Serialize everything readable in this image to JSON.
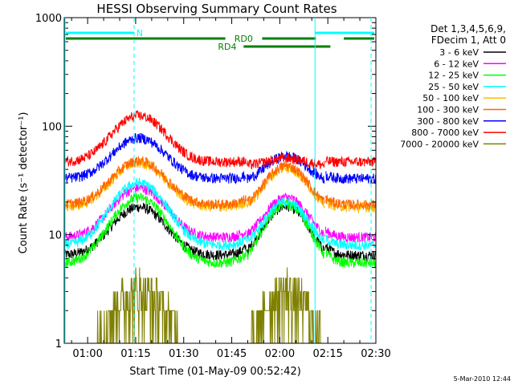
{
  "chart_data": {
    "type": "line",
    "title": "HESSI Observing Summary Count Rates",
    "xlabel": "Start Time (01-May-09 00:52:42)",
    "ylabel": "Count Rate (s⁻¹ detector⁻¹)",
    "ylog": true,
    "ylim": [
      1,
      1000
    ],
    "xlim_minutes": [
      52.7,
      150
    ],
    "x_ticks": [
      "01:00",
      "01:15",
      "01:30",
      "01:45",
      "02:00",
      "02:15",
      "02:30"
    ],
    "x_tick_minutes": [
      60,
      75,
      90,
      105,
      120,
      135,
      150
    ],
    "y_ticks": [
      "1",
      "10",
      "100",
      "1000"
    ],
    "y_tick_values": [
      1,
      10,
      100,
      1000
    ],
    "legend": {
      "header": [
        "Det 1,3,4,5,6,9,",
        "FDecim 1, Att 0"
      ],
      "placement": "right"
    },
    "series": [
      {
        "name": "3 - 6 keV",
        "color": "#000000",
        "base": 6.5,
        "peak1": 18,
        "peak2": 20
      },
      {
        "name": "6 - 12 keV",
        "color": "#ff00ff",
        "base": 9.5,
        "peak1": 27,
        "peak2": 24
      },
      {
        "name": "12 - 25 keV",
        "color": "#00ff00",
        "base": 5.5,
        "peak1": 22,
        "peak2": 21
      },
      {
        "name": "25 - 50 keV",
        "color": "#00ffff",
        "base": 8,
        "peak1": 30,
        "peak2": 22
      },
      {
        "name": "50 - 100 keV",
        "color": "#ffbb00",
        "base": 18,
        "peak1": 46,
        "peak2": 45
      },
      {
        "name": "100 - 300 keV",
        "color": "#ff6600",
        "base": 19,
        "peak1": 48,
        "peak2": 47
      },
      {
        "name": "300 - 800 keV",
        "color": "#0000ff",
        "base": 33,
        "peak1": 78,
        "peak2": 58
      },
      {
        "name": "800 - 7000 keV",
        "color": "#ff0000",
        "base": 47,
        "peak1": 125,
        "peak2": 55
      },
      {
        "name": "7000 - 20000 keV",
        "color": "#808000",
        "base": 1,
        "peak1": 3.8,
        "peak2": 3.8
      }
    ],
    "annotations": [
      {
        "label": "N",
        "color": "#00ffff"
      },
      {
        "label": "RD0",
        "color": "#008000"
      },
      {
        "label": "RD4",
        "color": "#008000"
      }
    ],
    "timestamp": "5-Mar-2010 12:44"
  }
}
